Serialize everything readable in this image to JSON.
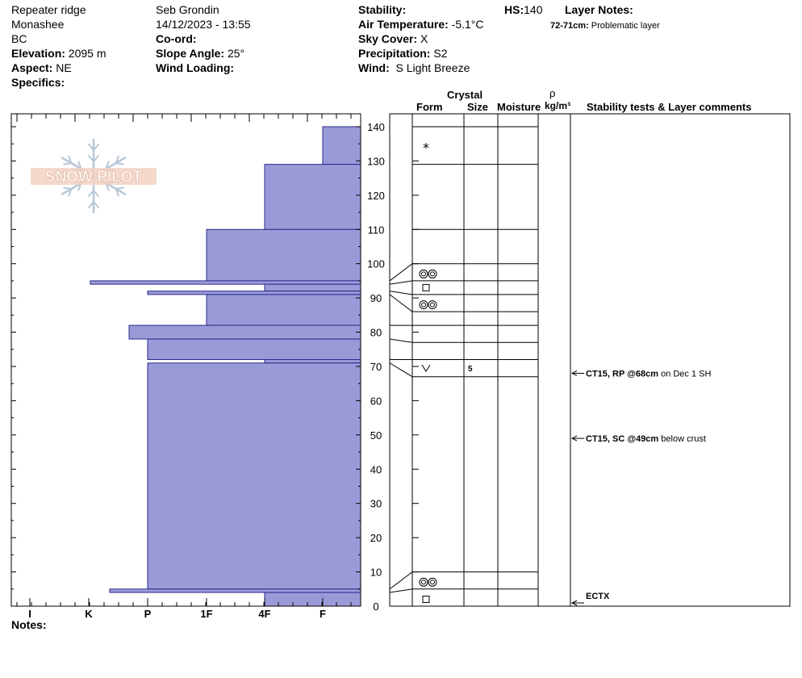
{
  "header": {
    "location": "Repeater ridge",
    "range": "Monashee",
    "province": "BC",
    "elevation_label": "Elevation:",
    "elevation_value": "2095 m",
    "aspect_label": "Aspect:",
    "aspect_value": "NE",
    "specifics_label": "Specifics:",
    "observer": "Seb Grondin",
    "datetime": "14/12/2023 - 13:55",
    "coord_label": "Co-ord:",
    "slope_label": "Slope Angle:",
    "slope_value": "25°",
    "wind_loading_label": "Wind Loading:",
    "stability_label": "Stability:",
    "air_temp_label": "Air Temperature:",
    "air_temp_value": "-5.1°C",
    "sky_label": "Sky Cover:",
    "sky_value": "X",
    "precip_label": "Precipitation:",
    "precip_value": "S2",
    "wind_label": "Wind:",
    "wind_value": "S Light Breeze",
    "hs_label": "HS:",
    "hs_value": "140",
    "layer_notes_label": "Layer Notes:",
    "layer_note_range": "72-71cm:",
    "layer_note_text": "Problematic layer"
  },
  "logo_text": "SNOW PILOT",
  "notes_label": "Notes:",
  "columns": {
    "crystal": "Crystal",
    "form": "Form",
    "size": "Size",
    "moisture": "Moisture",
    "rho": "ρ",
    "density_unit": "kg/m³",
    "comments": "Stability tests & Layer comments"
  },
  "chart_data": {
    "type": "bar",
    "title": "",
    "xlabel": "",
    "ylabel": "",
    "hardness_ticks": [
      "I",
      "K",
      "P",
      "1F",
      "4F",
      "F"
    ],
    "hardness_order_right_to_left": [
      "F",
      "4F",
      "1F",
      "P",
      "K",
      "I"
    ],
    "height_ticks": [
      0,
      10,
      20,
      30,
      40,
      50,
      60,
      70,
      80,
      90,
      100,
      110,
      120,
      130,
      140
    ],
    "ylim": [
      0,
      140
    ],
    "hs": 140,
    "hardness_layers": [
      {
        "top": 140,
        "bottom": 129,
        "hardness": "F"
      },
      {
        "top": 129,
        "bottom": 110,
        "hardness": "4F"
      },
      {
        "top": 110,
        "bottom": 95,
        "hardness": "1F"
      },
      {
        "top": 95,
        "bottom": 94,
        "hardness": "K-"
      },
      {
        "top": 94,
        "bottom": 92,
        "hardness": "4F"
      },
      {
        "top": 92,
        "bottom": 91,
        "hardness": "P+"
      },
      {
        "top": 91,
        "bottom": 82,
        "hardness": "1F"
      },
      {
        "top": 82,
        "bottom": 78,
        "hardness": "P+"
      },
      {
        "top": 78,
        "bottom": 72,
        "hardness": "P"
      },
      {
        "top": 72,
        "bottom": 71,
        "hardness": "4F"
      },
      {
        "top": 71,
        "bottom": 5,
        "hardness": "P"
      },
      {
        "top": 5,
        "bottom": 4,
        "hardness": "K+"
      },
      {
        "top": 4,
        "bottom": 0,
        "hardness": "4F"
      }
    ],
    "layer_boundaries": [
      140,
      129,
      110,
      100,
      95,
      91,
      86,
      82,
      77,
      72,
      67,
      10,
      5
    ],
    "crystal_forms": [
      {
        "height": 134,
        "form": "*",
        "size": ""
      },
      {
        "height": 97,
        "form": "◎◎",
        "size": ""
      },
      {
        "height": 93,
        "form": "□",
        "size": ""
      },
      {
        "height": 88,
        "form": "◎◎",
        "size": ""
      },
      {
        "height": 69.5,
        "form": "V",
        "size": "5"
      },
      {
        "height": 7,
        "form": "◎◎",
        "size": ""
      },
      {
        "height": 2,
        "form": "□",
        "size": ""
      }
    ],
    "stability_tests": [
      {
        "height": 68,
        "bold": "CT15, RP @68cm",
        "text": "on Dec 1 SH"
      },
      {
        "height": 49,
        "bold": "CT15, SC @49cm",
        "text": "below crust"
      },
      {
        "height": 0,
        "bold": "ECTX",
        "text": ""
      }
    ]
  }
}
